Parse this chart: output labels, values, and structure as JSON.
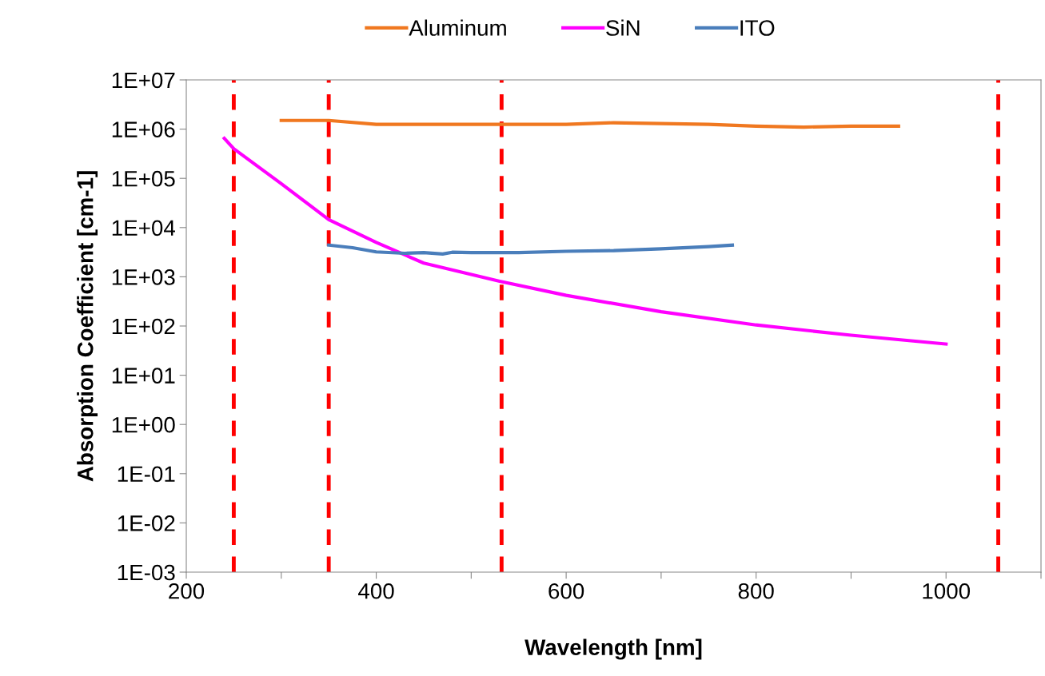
{
  "chart_data": {
    "type": "line",
    "xlabel": "Wavelength [nm]",
    "ylabel": "Absorption Coefficient [cm-1]",
    "log": "y",
    "legend": "top",
    "grid": false,
    "marker": "none",
    "line_style": "solid",
    "xlim": [
      200,
      1100
    ],
    "xticks": [
      200,
      {
        "value": 300,
        "label": null
      },
      400,
      {
        "value": 500,
        "label": null
      },
      600,
      {
        "value": 700,
        "label": null
      },
      800,
      {
        "value": 900,
        "label": null
      },
      1000,
      {
        "value": 1100,
        "label": null
      }
    ],
    "ylim": [
      0.001,
      10000000
    ],
    "yticks": [
      {
        "value": 0.001,
        "label": "1E-03"
      },
      {
        "value": 0.01,
        "label": "1E-02"
      },
      {
        "value": 0.1,
        "label": "1E-01"
      },
      {
        "value": 1,
        "label": "1E+00"
      },
      {
        "value": 10,
        "label": "1E+01"
      },
      {
        "value": 100,
        "label": "1E+02"
      },
      {
        "value": 1000,
        "label": "1E+03"
      },
      {
        "value": 10000,
        "label": "1E+04"
      },
      {
        "value": 100000,
        "label": "1E+05"
      },
      {
        "value": 1000000,
        "label": "1E+06"
      },
      {
        "value": 10000000,
        "label": "1E+07"
      }
    ],
    "series": [
      {
        "name": "Aluminum",
        "color": "#f07820",
        "x": [
          300,
          350,
          400,
          500,
          600,
          650,
          750,
          800,
          850,
          900,
          950
        ],
        "values": [
          1500000,
          1500000,
          1250000,
          1250000,
          1250000,
          1350000,
          1250000,
          1150000,
          1100000,
          1150000,
          1150000
        ]
      },
      {
        "name": "SiN",
        "color": "#ff00ff",
        "x": [
          240,
          250,
          300,
          350,
          400,
          450,
          530,
          600,
          700,
          800,
          900,
          1000
        ],
        "values": [
          650000,
          400000,
          78000,
          14500,
          5000,
          1900,
          810,
          420,
          195,
          105,
          65,
          43
        ]
      },
      {
        "name": "ITO",
        "color": "#4a7ebb",
        "x": [
          350,
          375,
          400,
          430,
          450,
          470,
          480,
          500,
          550,
          600,
          650,
          700,
          750,
          775
        ],
        "values": [
          4400,
          3900,
          3200,
          3000,
          3100,
          2900,
          3150,
          3100,
          3100,
          3300,
          3400,
          3700,
          4100,
          4400
        ]
      }
    ],
    "ref_lines": [
      {
        "axis": "x",
        "value": 250,
        "color": "#ff0000",
        "line_style": "dashed"
      },
      {
        "axis": "x",
        "value": 350,
        "color": "#ff0000",
        "line_style": "dashed"
      },
      {
        "axis": "x",
        "value": 532,
        "color": "#ff0000",
        "line_style": "dashed"
      },
      {
        "axis": "x",
        "value": 1055,
        "color": "#ff0000",
        "line_style": "dashed"
      }
    ]
  }
}
